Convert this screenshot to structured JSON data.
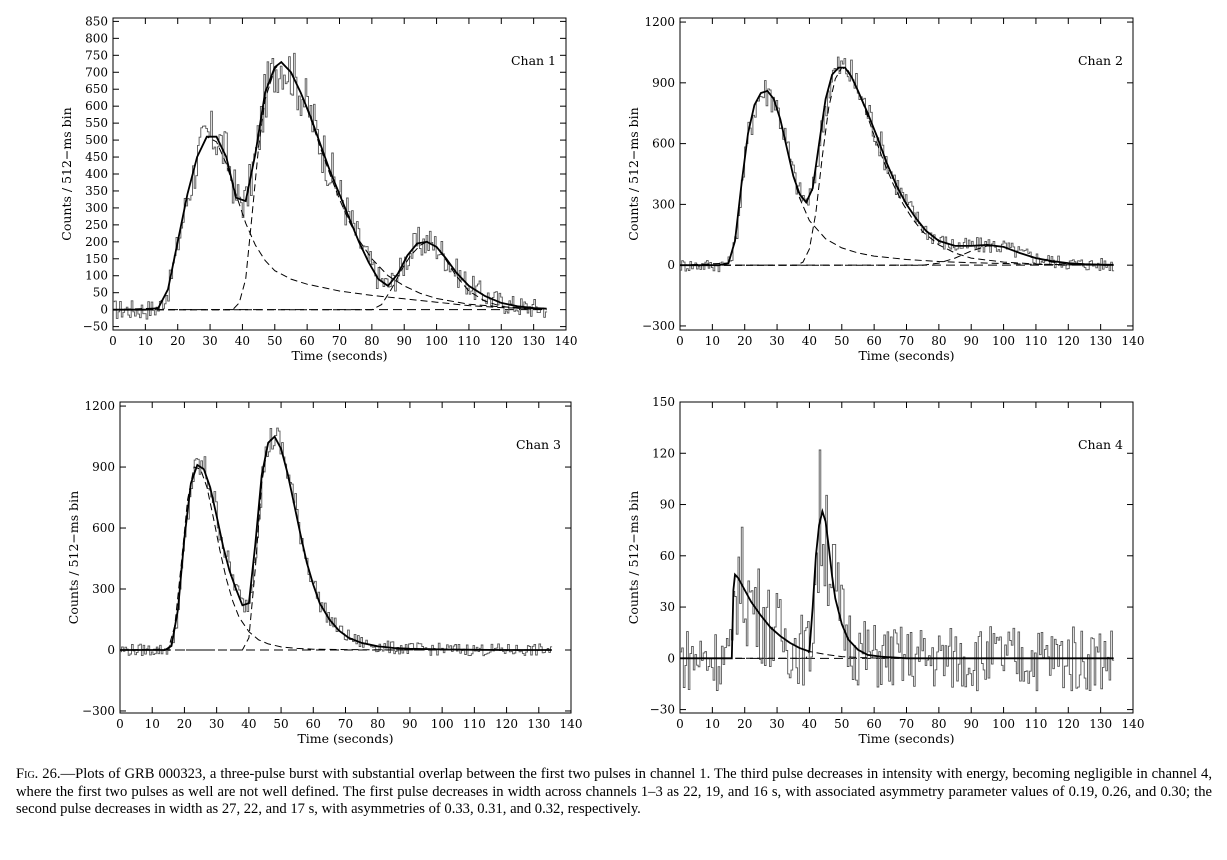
{
  "figure": {
    "caption_label": "Fig. 26.",
    "caption_text": "—Plots of GRB 000323, a three-pulse burst with substantial overlap between the first two pulses in channel 1. The third pulse decreases in intensity with energy, becoming negligible in channel 4, where the first two pulses as well are not well defined. The first pulse decreases in width across channels 1–3 as 22, 19, and 16 s, with associated asymmetry parameter values of 0.19, 0.26, and 0.30; the second pulse decreases in width as 27, 22, and 17 s, with asymmetries of 0.33, 0.31, and 0.32, respectively."
  },
  "chart_data": [
    {
      "type": "line",
      "title": "Chan 1",
      "xlabel": "Time (seconds)",
      "ylabel": "Counts / 512−ms bin",
      "xlim": [
        0,
        140
      ],
      "ylim": [
        -60,
        860
      ],
      "xticks": [
        0,
        10,
        20,
        30,
        40,
        50,
        60,
        70,
        80,
        90,
        100,
        110,
        120,
        130,
        140
      ],
      "yticks": [
        -50,
        0,
        50,
        100,
        150,
        200,
        250,
        300,
        350,
        400,
        450,
        500,
        550,
        600,
        650,
        700,
        750,
        800,
        850
      ],
      "fit_total": {
        "x": [
          0,
          10,
          14,
          17,
          20,
          23,
          26,
          29,
          32,
          35,
          38,
          41,
          44,
          47,
          50,
          52,
          55,
          58,
          61,
          64,
          67,
          70,
          73,
          76,
          79,
          82,
          85,
          88,
          91,
          94,
          97,
          100,
          103,
          106,
          110,
          115,
          120,
          125,
          130,
          134
        ],
        "y": [
          0,
          0,
          5,
          60,
          200,
          340,
          450,
          510,
          510,
          450,
          330,
          320,
          460,
          640,
          715,
          730,
          700,
          640,
          570,
          490,
          410,
          340,
          270,
          200,
          140,
          90,
          70,
          105,
          160,
          195,
          200,
          185,
          150,
          110,
          70,
          40,
          20,
          10,
          5,
          3
        ]
      },
      "pulses": [
        {
          "x": [
            0,
            14,
            17,
            20,
            23,
            26,
            29,
            32,
            35,
            38,
            41,
            44,
            47,
            50,
            55,
            60,
            70,
            80,
            90,
            100,
            110,
            120,
            134
          ],
          "y": [
            0,
            5,
            60,
            200,
            340,
            450,
            510,
            495,
            430,
            340,
            255,
            190,
            145,
            115,
            90,
            75,
            55,
            42,
            32,
            22,
            12,
            6,
            2
          ]
        },
        {
          "x": [
            0,
            37,
            39,
            41,
            43,
            45,
            47,
            50,
            52,
            55,
            58,
            61,
            64,
            67,
            70,
            73,
            76,
            80,
            85,
            90,
            95,
            100,
            110,
            120,
            134
          ],
          "y": [
            0,
            0,
            20,
            90,
            280,
            480,
            620,
            710,
            730,
            700,
            640,
            565,
            480,
            400,
            325,
            260,
            205,
            150,
            100,
            70,
            48,
            33,
            16,
            8,
            3
          ]
        },
        {
          "x": [
            0,
            80,
            83,
            86,
            89,
            92,
            95,
            97,
            100,
            103,
            106,
            110,
            115,
            120,
            125,
            130,
            134
          ],
          "y": [
            0,
            0,
            15,
            60,
            115,
            160,
            190,
            200,
            185,
            145,
            100,
            55,
            25,
            10,
            4,
            1,
            0
          ]
        }
      ],
      "noise_amp": 50,
      "annotations": []
    },
    {
      "type": "line",
      "title": "Chan 2",
      "xlabel": "Time (seconds)",
      "ylabel": "Counts / 512−ms bin",
      "xlim": [
        0,
        140
      ],
      "ylim": [
        -320,
        1220
      ],
      "xticks": [
        0,
        10,
        20,
        30,
        40,
        50,
        60,
        70,
        80,
        90,
        100,
        110,
        120,
        130,
        140
      ],
      "yticks": [
        -300,
        0,
        300,
        600,
        900,
        1200
      ],
      "fit_total": {
        "x": [
          0,
          12,
          15,
          17,
          19,
          21,
          23,
          25,
          27,
          29,
          31,
          33,
          35,
          37,
          39,
          41,
          43,
          45,
          47,
          49,
          51,
          53,
          55,
          58,
          61,
          64,
          67,
          70,
          73,
          76,
          80,
          85,
          90,
          95,
          100,
          105,
          110,
          115,
          120,
          125,
          130,
          134
        ],
        "y": [
          0,
          0,
          10,
          120,
          400,
          650,
          790,
          850,
          860,
          820,
          720,
          580,
          440,
          350,
          310,
          380,
          600,
          820,
          940,
          975,
          975,
          930,
          860,
          750,
          630,
          500,
          390,
          300,
          230,
          170,
          120,
          95,
          95,
          100,
          90,
          60,
          35,
          20,
          10,
          5,
          3,
          2
        ]
      },
      "pulses": [
        {
          "x": [
            0,
            15,
            17,
            19,
            21,
            23,
            25,
            27,
            29,
            31,
            33,
            35,
            37,
            40,
            45,
            50,
            55,
            60,
            70,
            80,
            90,
            100,
            110,
            120,
            134
          ],
          "y": [
            0,
            10,
            120,
            400,
            650,
            790,
            850,
            860,
            820,
            720,
            580,
            440,
            330,
            220,
            130,
            85,
            60,
            45,
            28,
            18,
            12,
            8,
            4,
            2,
            0
          ]
        },
        {
          "x": [
            0,
            36,
            38,
            40,
            42,
            44,
            46,
            48,
            50,
            52,
            54,
            57,
            60,
            63,
            66,
            69,
            72,
            75,
            80,
            85,
            90,
            100,
            110,
            120,
            134
          ],
          "y": [
            0,
            0,
            15,
            80,
            260,
            540,
            780,
            920,
            975,
            960,
            900,
            780,
            640,
            510,
            395,
            300,
            225,
            165,
            100,
            60,
            35,
            15,
            6,
            2,
            0
          ]
        },
        {
          "x": [
            0,
            75,
            80,
            85,
            90,
            95,
            100,
            105,
            110,
            115,
            120,
            125,
            130,
            134
          ],
          "y": [
            0,
            0,
            10,
            35,
            70,
            95,
            90,
            60,
            35,
            15,
            6,
            2,
            0,
            0
          ]
        }
      ],
      "noise_amp": 55,
      "annotations": []
    },
    {
      "type": "line",
      "title": "Chan 3",
      "xlabel": "Time (seconds)",
      "ylabel": "Counts / 512−ms bin",
      "xlim": [
        0,
        140
      ],
      "ylim": [
        -310,
        1220
      ],
      "xticks": [
        0,
        10,
        20,
        30,
        40,
        50,
        60,
        70,
        80,
        90,
        100,
        110,
        120,
        130,
        140
      ],
      "yticks": [
        -300,
        0,
        300,
        600,
        900,
        1200
      ],
      "fit_total": {
        "x": [
          0,
          14,
          16,
          18,
          20,
          22,
          24,
          26,
          28,
          30,
          32,
          34,
          36,
          38,
          40,
          42,
          44,
          46,
          48,
          50,
          52,
          54,
          56,
          58,
          60,
          62,
          65,
          68,
          71,
          75,
          80,
          85,
          90,
          100,
          110,
          120,
          134
        ],
        "y": [
          0,
          0,
          20,
          200,
          550,
          820,
          910,
          890,
          800,
          660,
          510,
          390,
          300,
          220,
          230,
          520,
          860,
          1020,
          1050,
          990,
          870,
          720,
          570,
          430,
          320,
          230,
          150,
          95,
          60,
          35,
          18,
          10,
          6,
          3,
          1,
          0,
          0
        ]
      },
      "pulses": [
        {
          "x": [
            0,
            15,
            17,
            19,
            21,
            23,
            25,
            27,
            29,
            31,
            33,
            35,
            37,
            40,
            43,
            46,
            50,
            55,
            60,
            70,
            80,
            100,
            134
          ],
          "y": [
            0,
            5,
            120,
            420,
            740,
            900,
            890,
            800,
            650,
            490,
            350,
            240,
            160,
            90,
            50,
            30,
            15,
            8,
            4,
            2,
            1,
            0,
            0
          ]
        },
        {
          "x": [
            0,
            38,
            40,
            42,
            44,
            46,
            48,
            50,
            52,
            54,
            56,
            58,
            60,
            62,
            65,
            68,
            71,
            75,
            80,
            85,
            90,
            100,
            134
          ],
          "y": [
            0,
            0,
            60,
            400,
            820,
            1020,
            1050,
            990,
            870,
            720,
            570,
            430,
            320,
            230,
            150,
            95,
            60,
            35,
            18,
            10,
            6,
            2,
            0
          ]
        }
      ],
      "noise_amp": 50,
      "annotations": []
    },
    {
      "type": "line",
      "title": "Chan 4",
      "xlabel": "Time (seconds)",
      "ylabel": "Counts / 512−ms bin",
      "xlim": [
        0,
        140
      ],
      "ylim": [
        -32,
        150
      ],
      "xticks": [
        0,
        10,
        20,
        30,
        40,
        50,
        60,
        70,
        80,
        90,
        100,
        110,
        120,
        130,
        140
      ],
      "yticks": [
        -30,
        0,
        30,
        60,
        90,
        120,
        150
      ],
      "fit_total": {
        "x": [
          0,
          16,
          16.5,
          17,
          18,
          20,
          22,
          25,
          28,
          31,
          34,
          37,
          40,
          41,
          42,
          43,
          44,
          45,
          46,
          47,
          48,
          50,
          52,
          55,
          58,
          62,
          70,
          134
        ],
        "y": [
          0,
          0,
          40,
          49,
          47,
          40,
          33,
          25,
          18,
          13,
          9,
          6,
          4,
          30,
          60,
          78,
          86,
          80,
          65,
          48,
          35,
          20,
          11,
          5,
          2,
          1,
          0,
          0
        ]
      },
      "pulses": [
        {
          "x": [
            0,
            16,
            16.5,
            17,
            18,
            20,
            22,
            25,
            28,
            31,
            34,
            37,
            40,
            43,
            46,
            50,
            55,
            60,
            70,
            134
          ],
          "y": [
            0,
            0,
            40,
            49,
            47,
            40,
            33,
            25,
            18,
            13,
            9,
            6,
            4,
            3,
            2,
            1,
            0.5,
            0.2,
            0,
            0
          ]
        },
        {
          "x": [
            0,
            39,
            40,
            41,
            42,
            43,
            44,
            45,
            46,
            47,
            48,
            50,
            52,
            55,
            58,
            62,
            70,
            134
          ],
          "y": [
            0,
            0,
            5,
            30,
            60,
            78,
            86,
            80,
            65,
            48,
            35,
            20,
            11,
            5,
            2,
            1,
            0,
            0
          ]
        }
      ],
      "noise_amp": 32,
      "annotations": []
    }
  ]
}
